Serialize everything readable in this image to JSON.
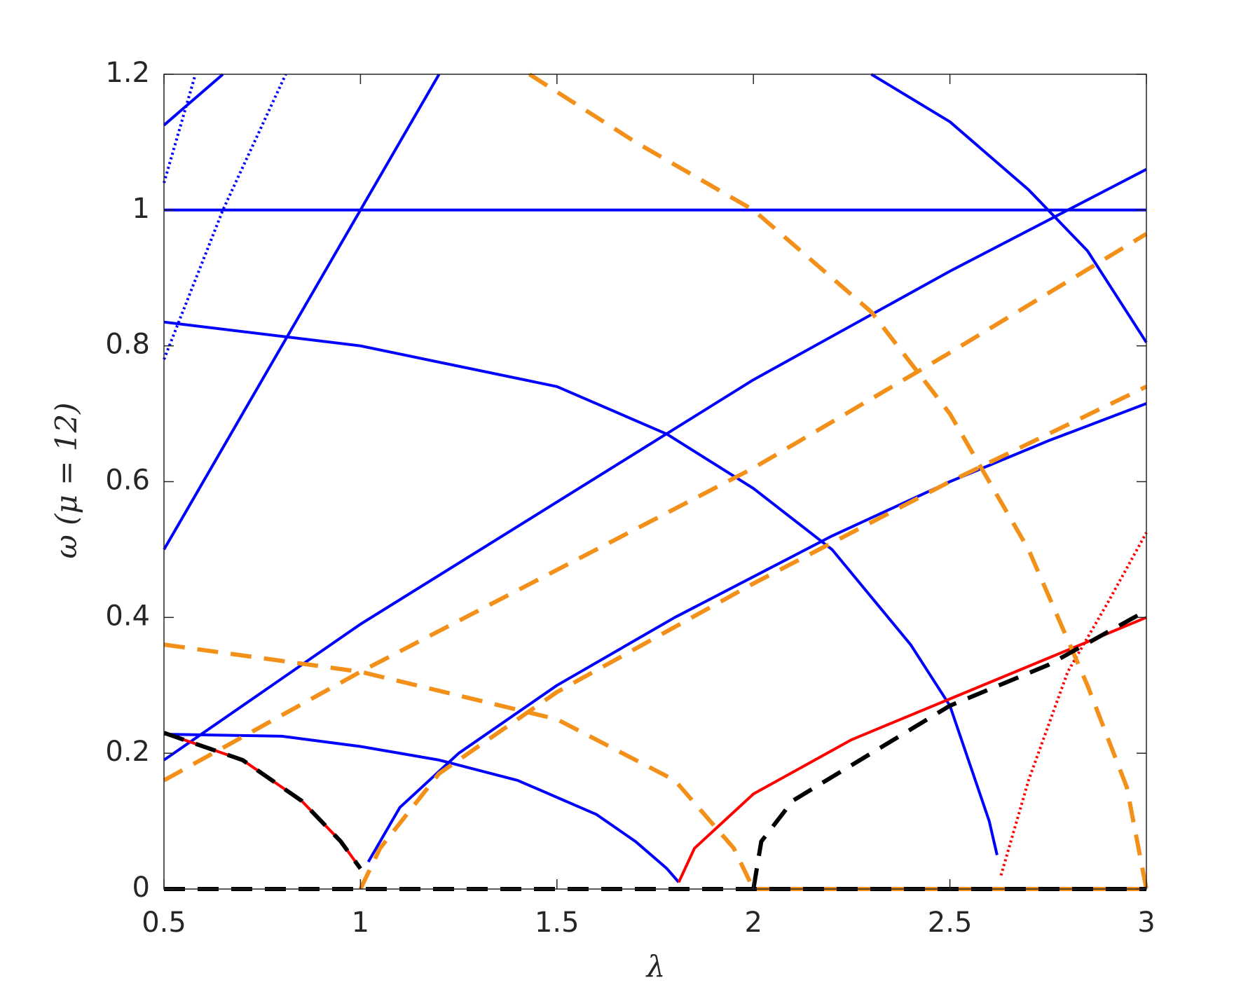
{
  "chart_data": {
    "type": "line",
    "xlabel": "λ",
    "ylabel": "ω (μ = 12)",
    "xlim": [
      0.5,
      3
    ],
    "ylim": [
      0,
      1.2
    ],
    "xticks": [
      0.5,
      1,
      1.5,
      2,
      2.5,
      3
    ],
    "yticks": [
      0,
      0.2,
      0.4,
      0.6,
      0.8,
      1,
      1.2
    ],
    "series": [
      {
        "color": "#0000ff",
        "style": "solid",
        "x": [
          0.5,
          3
        ],
        "values": [
          1,
          1
        ]
      },
      {
        "color": "#0000ff",
        "style": "solid",
        "x": [
          0.5,
          0.8,
          1,
          1.2
        ],
        "values": [
          0.5,
          0.8,
          1,
          1.2
        ]
      },
      {
        "color": "#0000ff",
        "style": "dotted",
        "x": [
          0.5,
          0.65,
          0.81
        ],
        "values": [
          0.78,
          1,
          1.2
        ]
      },
      {
        "color": "#0000ff",
        "style": "dotted",
        "x": [
          0.5,
          0.58
        ],
        "values": [
          1.04,
          1.2
        ]
      },
      {
        "color": "#0000ff",
        "style": "solid",
        "x": [
          0.5,
          0.65
        ],
        "values": [
          1.125,
          1.2
        ]
      },
      {
        "color": "#0000ff",
        "style": "solid",
        "x": [
          2.3,
          2.5,
          2.7,
          2.85,
          3
        ],
        "values": [
          1.2,
          1.13,
          1.03,
          0.94,
          0.805
        ]
      },
      {
        "color": "#0000ff",
        "style": "solid",
        "x": [
          0.5,
          1,
          1.5,
          2,
          2.5,
          3
        ],
        "values": [
          0.19,
          0.39,
          0.57,
          0.75,
          0.91,
          1.06
        ]
      },
      {
        "color": "#0000ff",
        "style": "solid",
        "x": [
          0.5,
          1,
          1.5,
          1.78,
          2,
          2.2,
          2.4,
          2.5,
          2.6,
          2.62
        ],
        "values": [
          0.835,
          0.8,
          0.74,
          0.67,
          0.59,
          0.5,
          0.36,
          0.27,
          0.1,
          0.05
        ]
      },
      {
        "color": "#0000ff",
        "style": "solid",
        "x": [
          1.02,
          1.1,
          1.25,
          1.5,
          1.8,
          2,
          2.2,
          2.5,
          2.75,
          3
        ],
        "values": [
          0.04,
          0.12,
          0.2,
          0.3,
          0.4,
          0.46,
          0.52,
          0.6,
          0.66,
          0.715
        ]
      },
      {
        "color": "#0000ff",
        "style": "solid",
        "x": [
          0.5,
          0.8,
          1,
          1.2,
          1.4,
          1.6,
          1.7,
          1.78,
          1.81
        ],
        "values": [
          0.228,
          0.225,
          0.21,
          0.19,
          0.16,
          0.11,
          0.07,
          0.03,
          0.01
        ]
      },
      {
        "color": "#ff0000",
        "style": "solid",
        "x": [
          0.5,
          0.7,
          0.85,
          0.95,
          1
        ],
        "values": [
          0.23,
          0.19,
          0.13,
          0.07,
          0.03
        ]
      },
      {
        "color": "#ff0000",
        "style": "solid",
        "x": [
          1.81,
          1.85,
          2,
          2.25,
          2.5,
          2.75,
          3
        ],
        "values": [
          0.01,
          0.06,
          0.14,
          0.22,
          0.28,
          0.34,
          0.4
        ]
      },
      {
        "color": "#ff0000",
        "style": "dotted",
        "x": [
          2.63,
          2.7,
          2.8,
          2.9,
          3
        ],
        "values": [
          0.02,
          0.16,
          0.32,
          0.42,
          0.525
        ]
      },
      {
        "color": "#f39019",
        "style": "dashed",
        "x": [
          1.43,
          1.7,
          2,
          2.3,
          2.5,
          2.7,
          2.85,
          2.95,
          3
        ],
        "values": [
          1.2,
          1.1,
          1,
          0.85,
          0.7,
          0.5,
          0.3,
          0.15,
          0
        ]
      },
      {
        "color": "#f39019",
        "style": "dashed",
        "x": [
          0.5,
          1,
          1.5,
          1.8,
          1.95,
          2
        ],
        "values": [
          0.36,
          0.32,
          0.25,
          0.16,
          0.06,
          0
        ]
      },
      {
        "color": "#f39019",
        "style": "dashed",
        "x": [
          0.5,
          1,
          1.5,
          2,
          2.5,
          3
        ],
        "values": [
          0.16,
          0.32,
          0.47,
          0.62,
          0.79,
          0.965
        ]
      },
      {
        "color": "#f39019",
        "style": "dashed",
        "x": [
          1,
          1.05,
          1.2,
          1.5,
          2,
          2.5,
          3
        ],
        "values": [
          0,
          0.06,
          0.17,
          0.29,
          0.45,
          0.6,
          0.74
        ]
      },
      {
        "color": "#f39019",
        "style": "dashed",
        "x": [
          2,
          3
        ],
        "values": [
          0,
          0
        ]
      },
      {
        "color": "#000000",
        "style": "dashed",
        "x": [
          0.5,
          0.7,
          0.85,
          0.95,
          1
        ],
        "values": [
          0.23,
          0.19,
          0.13,
          0.07,
          0.03
        ]
      },
      {
        "color": "#000000",
        "style": "dashed",
        "x": [
          2,
          2.02,
          2.1,
          2.3,
          2.5,
          2.75,
          3
        ],
        "values": [
          0,
          0.07,
          0.13,
          0.2,
          0.27,
          0.33,
          0.41
        ]
      },
      {
        "color": "#000000",
        "style": "dashed",
        "x": [
          0.5,
          3
        ],
        "values": [
          0,
          0
        ]
      }
    ]
  }
}
